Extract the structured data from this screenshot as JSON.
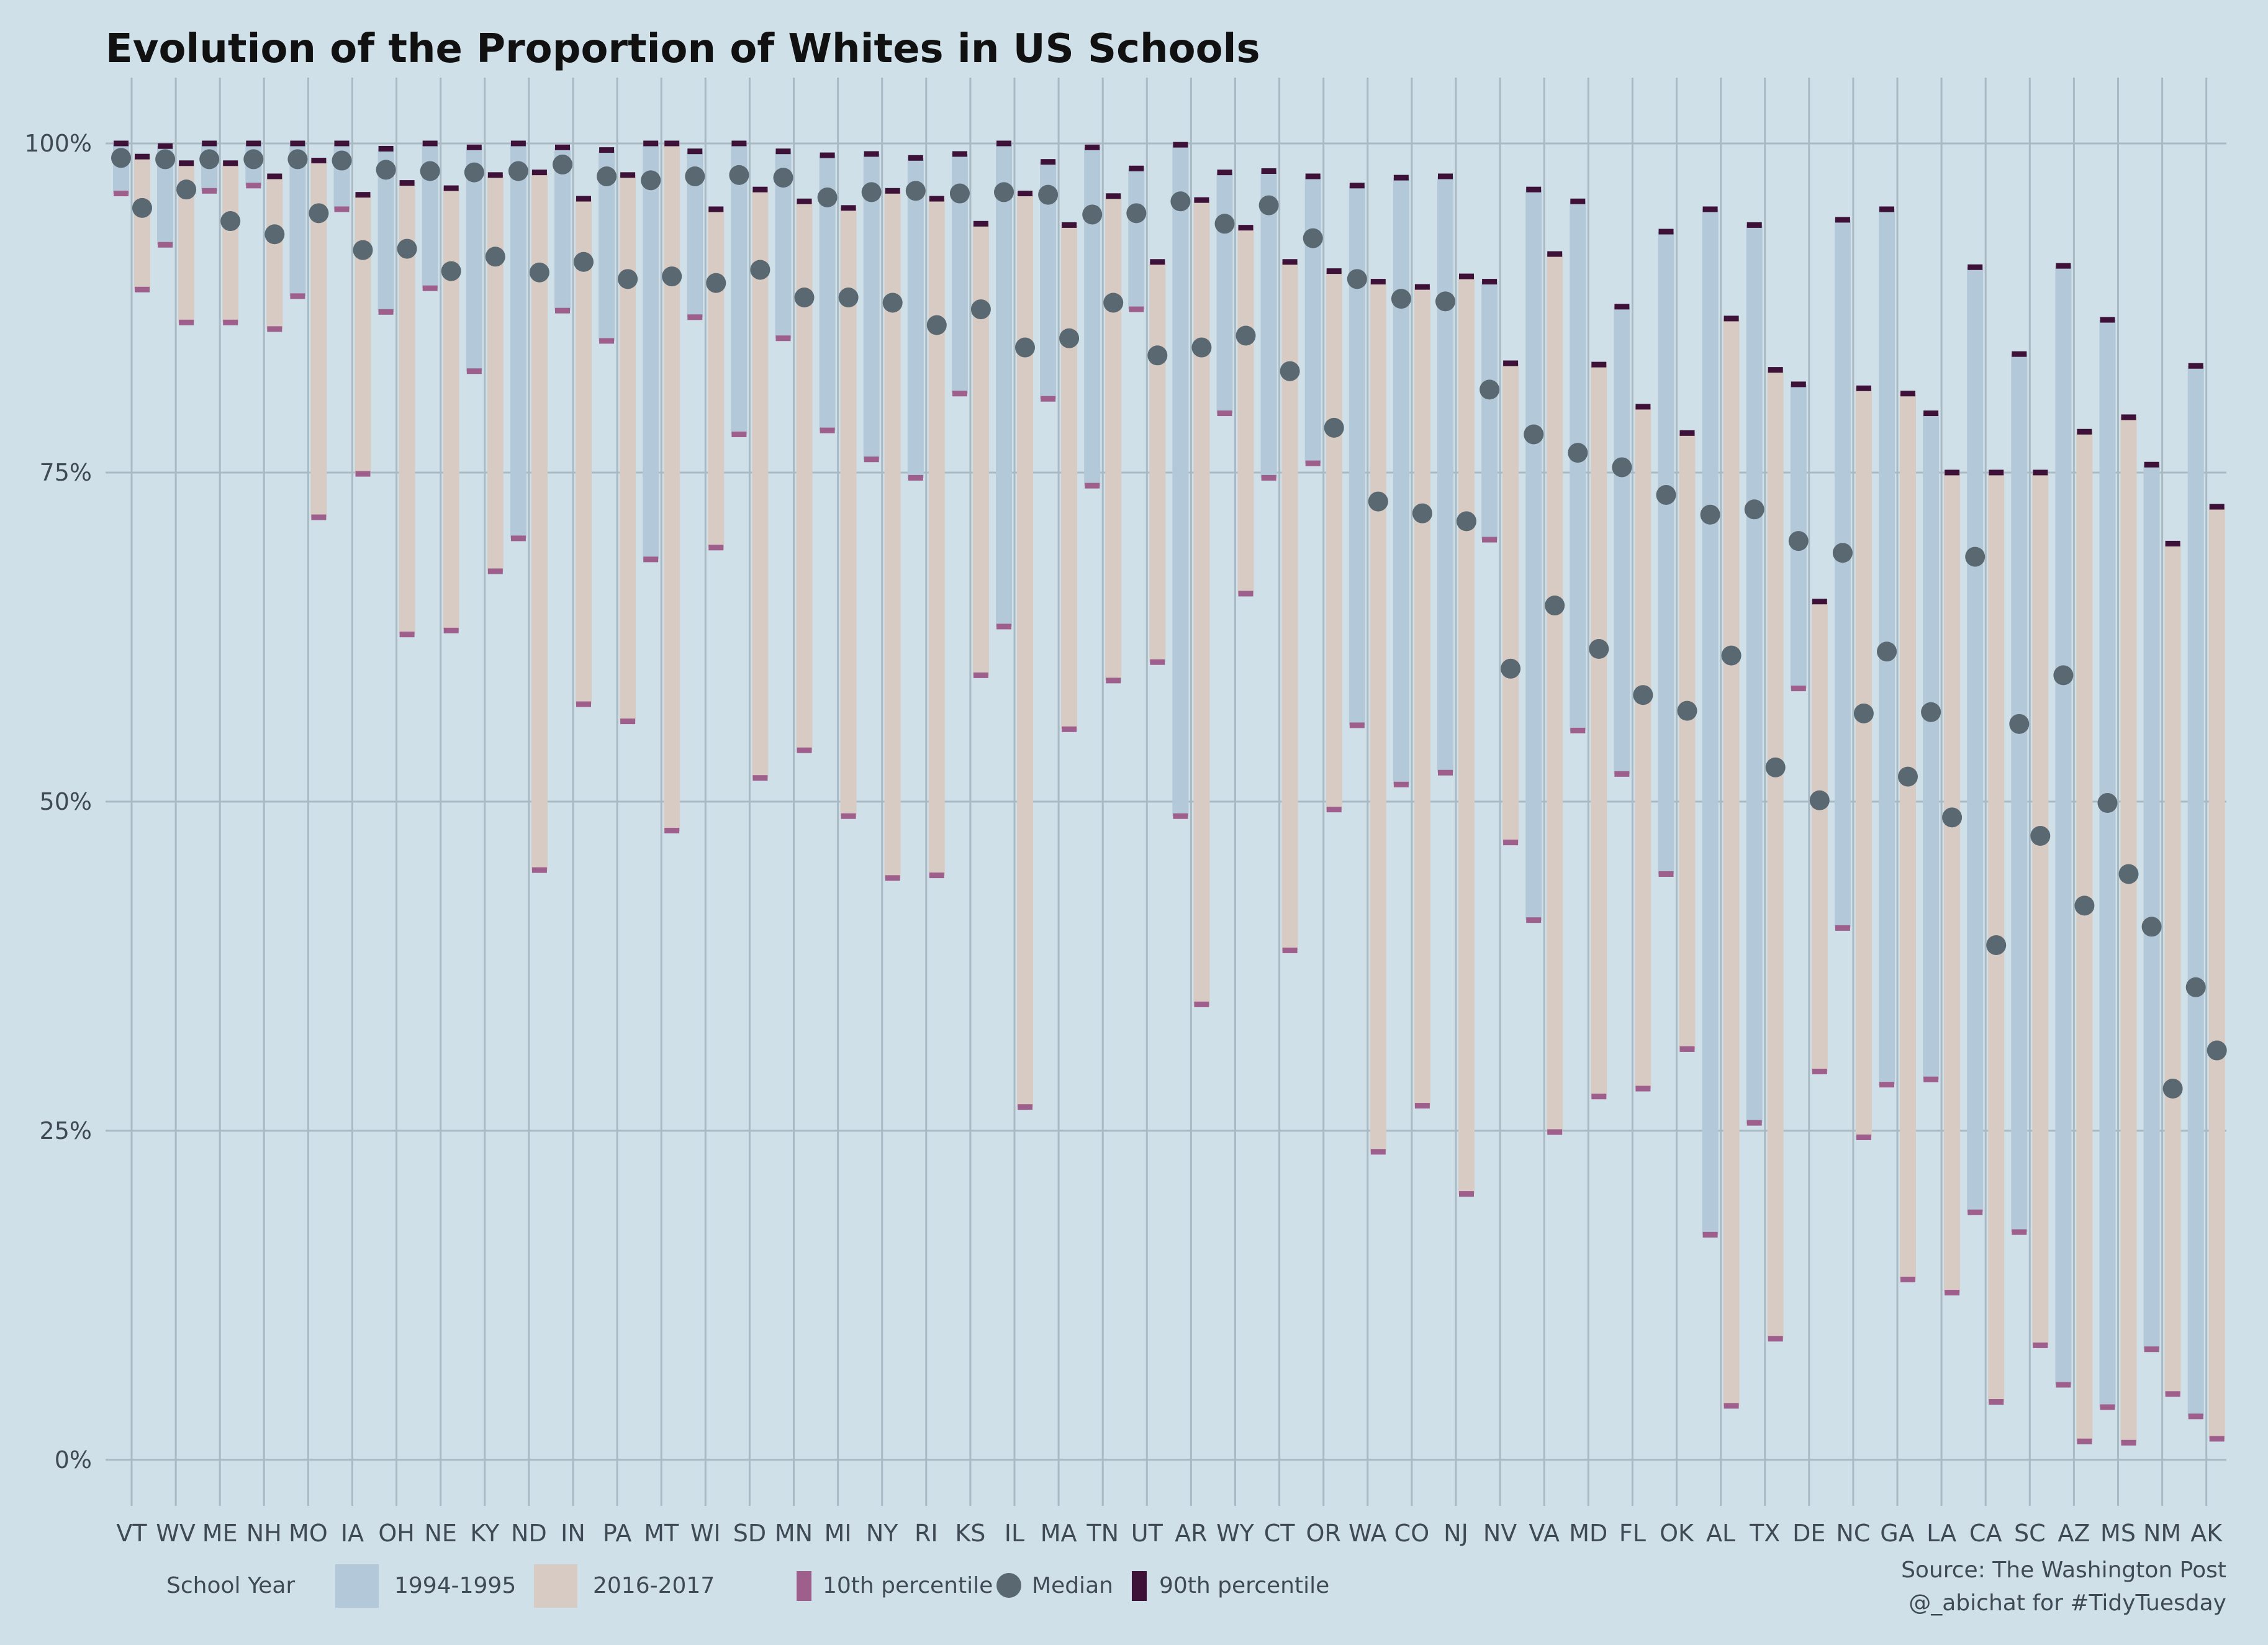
{
  "chart_data": {
    "type": "range_bar_dot",
    "title": "Evolution of the Proportion of Whites in US Schools",
    "xlabel": "",
    "ylabel": "",
    "y_ticks": [
      "0%",
      "25%",
      "50%",
      "75%",
      "100%"
    ],
    "y_tick_values": [
      0,
      25,
      50,
      75,
      100
    ],
    "ylim": [
      -3.5,
      105
    ],
    "grid": true,
    "states": [
      "VT",
      "WV",
      "ME",
      "NH",
      "MO",
      "IA",
      "OH",
      "NE",
      "KY",
      "ND",
      "IN",
      "PA",
      "MT",
      "WI",
      "SD",
      "MN",
      "MI",
      "NY",
      "RI",
      "KS",
      "IL",
      "MA",
      "TN",
      "UT",
      "AR",
      "WY",
      "CT",
      "OR",
      "WA",
      "CO",
      "NJ",
      "NV",
      "VA",
      "MD",
      "FL",
      "OK",
      "AL",
      "TX",
      "DE",
      "NC",
      "GA",
      "LA",
      "CA",
      "SC",
      "AZ",
      "MS",
      "NM",
      "AK"
    ],
    "series": [
      {
        "name": "1994-1995",
        "p10": [
          96.2,
          92.3,
          96.4,
          96.8,
          88.4,
          95.0,
          87.2,
          89.0,
          82.7,
          70.0,
          87.3,
          85.0,
          68.4,
          86.8,
          77.9,
          85.2,
          78.2,
          76.0,
          74.6,
          81.0,
          63.3,
          80.6,
          74.0,
          87.4,
          48.9,
          79.5,
          74.6,
          75.7,
          55.8,
          51.3,
          52.2,
          69.9,
          41.0,
          55.4,
          52.1,
          44.5,
          17.1,
          25.6,
          58.6,
          40.4,
          28.5,
          28.9,
          18.8,
          17.3,
          5.7,
          4.0,
          8.4,
          3.3
        ],
        "median": [
          98.9,
          98.8,
          98.8,
          98.8,
          98.8,
          98.7,
          98.0,
          97.9,
          97.8,
          97.9,
          98.4,
          97.5,
          97.2,
          97.5,
          97.6,
          97.4,
          95.9,
          96.3,
          96.4,
          96.2,
          96.3,
          96.1,
          94.6,
          94.7,
          95.6,
          93.9,
          95.3,
          92.8,
          89.7,
          88.2,
          88.0,
          81.3,
          77.9,
          76.5,
          75.4,
          73.3,
          71.8,
          72.2,
          69.8,
          68.9,
          61.4,
          56.8,
          68.6,
          55.9,
          59.6,
          49.9,
          40.5,
          35.9
        ],
        "p90": [
          100,
          99.8,
          100,
          100,
          100,
          100,
          99.6,
          100,
          99.7,
          100,
          99.7,
          99.5,
          100,
          99.4,
          100,
          99.4,
          99.1,
          99.2,
          98.9,
          99.2,
          100,
          98.6,
          99.7,
          98.1,
          99.9,
          97.8,
          97.9,
          97.5,
          96.8,
          97.4,
          97.5,
          89.5,
          96.5,
          95.6,
          87.6,
          93.3,
          95.0,
          93.8,
          81.7,
          94.2,
          95.0,
          79.5,
          90.6,
          84.0,
          90.7,
          86.6,
          75.6,
          83.1
        ]
      },
      {
        "name": "2016-2017",
        "p10": [
          88.9,
          86.4,
          86.4,
          85.9,
          71.6,
          74.9,
          62.7,
          63.0,
          67.5,
          44.8,
          57.4,
          56.1,
          47.8,
          69.3,
          51.8,
          53.9,
          48.9,
          44.2,
          44.4,
          59.6,
          26.8,
          55.5,
          59.2,
          60.6,
          34.6,
          65.8,
          38.7,
          49.4,
          23.4,
          26.9,
          20.2,
          46.9,
          24.9,
          27.6,
          28.2,
          31.2,
          4.1,
          9.2,
          29.5,
          24.5,
          13.7,
          12.7,
          4.4,
          8.7,
          1.4,
          1.3,
          5.0,
          1.6
        ],
        "median": [
          95.1,
          96.5,
          94.1,
          93.1,
          94.7,
          91.9,
          92.0,
          90.3,
          91.4,
          90.2,
          91.0,
          89.7,
          89.9,
          89.4,
          90.4,
          88.3,
          88.3,
          87.9,
          86.2,
          87.4,
          84.5,
          85.2,
          87.9,
          83.9,
          84.5,
          85.4,
          82.7,
          78.4,
          72.8,
          71.9,
          71.3,
          60.1,
          64.9,
          61.6,
          58.1,
          56.9,
          61.1,
          52.6,
          50.1,
          56.7,
          51.9,
          48.8,
          39.1,
          47.4,
          42.1,
          44.5,
          28.2,
          31.1
        ],
        "p90": [
          99.0,
          98.5,
          98.5,
          97.5,
          98.7,
          96.1,
          97.0,
          96.6,
          97.6,
          97.8,
          95.8,
          97.6,
          100,
          95.0,
          96.5,
          95.6,
          95.1,
          96.4,
          95.8,
          93.9,
          96.2,
          93.8,
          96.0,
          91.0,
          95.7,
          93.6,
          91.0,
          90.3,
          89.5,
          89.1,
          89.9,
          83.3,
          91.6,
          83.2,
          80.0,
          78.0,
          86.7,
          82.8,
          65.2,
          81.4,
          81.0,
          75.0,
          75.0,
          75.0,
          78.1,
          79.2,
          69.6,
          72.4
        ]
      }
    ],
    "colors": {
      "range_1994": "#b3c8d8",
      "range_2016": "#d8cbc3",
      "p10": "#9e5f8c",
      "median": "#5a6871",
      "p90": "#3e1138",
      "grid": "#a9bac4",
      "background": "#cfe0e9"
    },
    "legend": {
      "title": "School Year",
      "series_1994": "1994-1995",
      "series_2016": "2016-2017",
      "p10": "10th percentile",
      "median": "Median",
      "p90": "90th percentile"
    },
    "caption_lines": [
      "Source: The Washington Post",
      "@_abichat for #TidyTuesday"
    ]
  }
}
